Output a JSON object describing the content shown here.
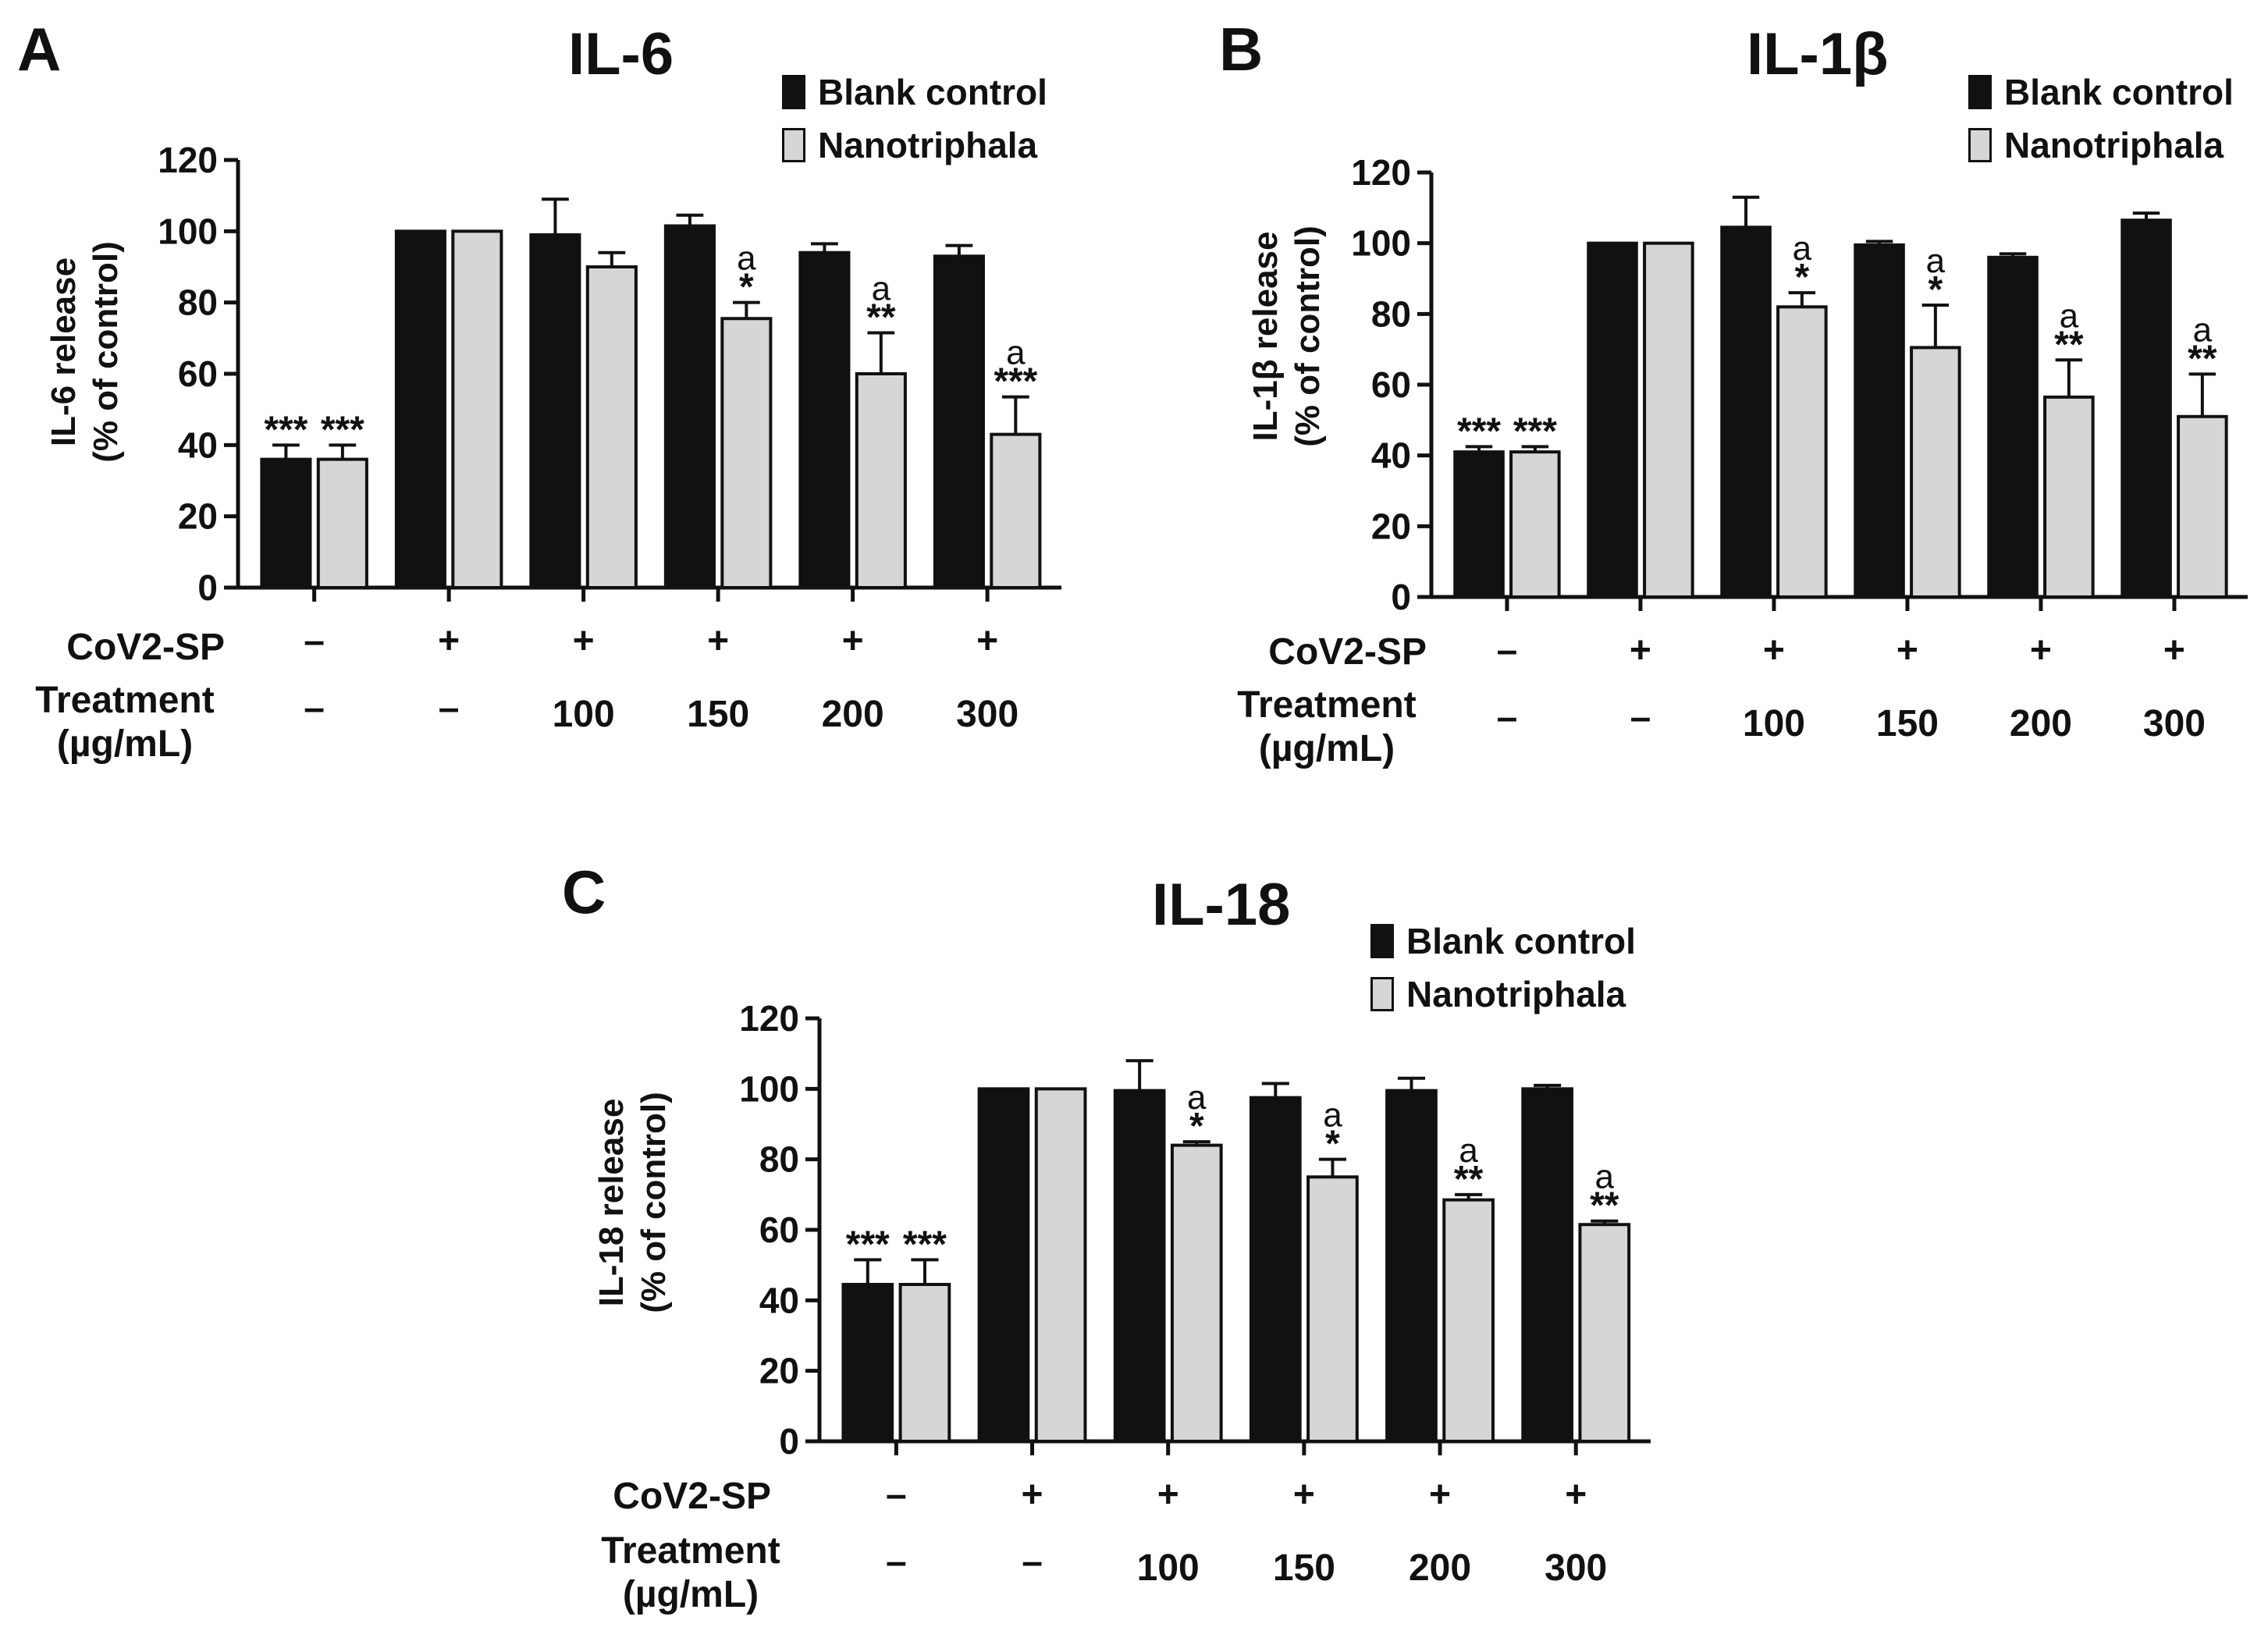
{
  "chart_data": [
    {
      "type": "bar",
      "panel": "A",
      "title": "IL-6",
      "ylabel_line1": "IL-6 release",
      "ylabel_line2": "(% of control)",
      "ylim": [
        0,
        120
      ],
      "yticks": [
        "0",
        "20",
        "40",
        "60",
        "80",
        "100",
        "120"
      ],
      "categories": [
        "CoV2-SP −, Treatment −",
        "CoV2-SP +, Treatment −",
        "CoV2-SP +, 100",
        "CoV2-SP +, 150",
        "CoV2-SP +, 200",
        "CoV2-SP +, 300"
      ],
      "cov2sp_label": "CoV2-SP",
      "treatment_label_line1": "Treatment",
      "treatment_label_line2": "(µg/mL)",
      "cov2sp_values": [
        "–",
        "+",
        "+",
        "+",
        "+",
        "+"
      ],
      "treatment_values": [
        "–",
        "–",
        "100",
        "150",
        "200",
        "300"
      ],
      "legend": [
        "Blank control",
        "Nanotriphala"
      ],
      "colors": {
        "blank": "#111111",
        "nano": "#d6d6d6",
        "edge": "#111111"
      },
      "series": [
        {
          "name": "Blank control",
          "values": [
            36,
            100,
            99,
            101.5,
            94,
            93
          ],
          "errors": [
            4,
            0,
            10,
            3,
            2.5,
            3
          ],
          "stars": [
            "***",
            "",
            "",
            "",
            "",
            ""
          ],
          "letters": [
            "",
            "",
            "",
            "",
            "",
            ""
          ]
        },
        {
          "name": "Nanotriphala",
          "values": [
            36,
            100,
            90,
            75.5,
            60,
            43
          ],
          "errors": [
            4,
            0,
            4,
            4.5,
            11.5,
            10.5
          ],
          "stars": [
            "***",
            "",
            "",
            "*",
            "**",
            "***"
          ],
          "letters": [
            "",
            "",
            "",
            "a",
            "a",
            "a"
          ]
        }
      ]
    },
    {
      "type": "bar",
      "panel": "B",
      "title": "IL-1β",
      "ylabel_line1": "IL-1β release",
      "ylabel_line2": "(% of control)",
      "ylim": [
        0,
        120
      ],
      "yticks": [
        "0",
        "20",
        "40",
        "60",
        "80",
        "100",
        "120"
      ],
      "categories": [
        "CoV2-SP −, Treatment −",
        "CoV2-SP +, Treatment −",
        "CoV2-SP +, 100",
        "CoV2-SP +, 150",
        "CoV2-SP +, 200",
        "CoV2-SP +, 300"
      ],
      "cov2sp_label": "CoV2-SP",
      "treatment_label_line1": "Treatment",
      "treatment_label_line2": "(µg/mL)",
      "cov2sp_values": [
        "–",
        "+",
        "+",
        "+",
        "+",
        "+"
      ],
      "treatment_values": [
        "–",
        "–",
        "100",
        "150",
        "200",
        "300"
      ],
      "legend": [
        "Blank control",
        "Nanotriphala"
      ],
      "colors": {
        "blank": "#111111",
        "nano": "#d6d6d6",
        "edge": "#111111"
      },
      "series": [
        {
          "name": "Blank control",
          "values": [
            41,
            100,
            104.5,
            99.5,
            96,
            106.5
          ],
          "errors": [
            1.5,
            0,
            8.5,
            1,
            1,
            2
          ],
          "stars": [
            "***",
            "",
            "",
            "",
            "",
            ""
          ],
          "letters": [
            "",
            "",
            "",
            "",
            "",
            ""
          ]
        },
        {
          "name": "Nanotriphala",
          "values": [
            41,
            100,
            82,
            70.5,
            56.5,
            51
          ],
          "errors": [
            1.5,
            0,
            4,
            12,
            10.5,
            12
          ],
          "stars": [
            "***",
            "",
            "*",
            "*",
            "**",
            "**"
          ],
          "letters": [
            "",
            "",
            "a",
            "a",
            "a",
            "a"
          ]
        }
      ]
    },
    {
      "type": "bar",
      "panel": "C",
      "title": "IL-18",
      "ylabel_line1": "IL-18 release",
      "ylabel_line2": "(% of control)",
      "ylim": [
        0,
        120
      ],
      "yticks": [
        "0",
        "20",
        "40",
        "60",
        "80",
        "100",
        "120"
      ],
      "categories": [
        "CoV2-SP −, Treatment −",
        "CoV2-SP +, Treatment −",
        "CoV2-SP +, 100",
        "CoV2-SP +, 150",
        "CoV2-SP +, 200",
        "CoV2-SP +, 300"
      ],
      "cov2sp_label": "CoV2-SP",
      "treatment_label_line1": "Treatment",
      "treatment_label_line2": "(µg/mL)",
      "cov2sp_values": [
        "–",
        "+",
        "+",
        "+",
        "+",
        "+"
      ],
      "treatment_values": [
        "–",
        "–",
        "100",
        "150",
        "200",
        "300"
      ],
      "legend": [
        "Blank control",
        "Nanotriphala"
      ],
      "colors": {
        "blank": "#111111",
        "nano": "#d6d6d6",
        "edge": "#111111"
      },
      "series": [
        {
          "name": "Blank control",
          "values": [
            44.5,
            100,
            99.5,
            97.5,
            99.5,
            100
          ],
          "errors": [
            7,
            0,
            8.5,
            4,
            3.5,
            1
          ],
          "stars": [
            "***",
            "",
            "",
            "",
            "",
            ""
          ],
          "letters": [
            "",
            "",
            "",
            "",
            "",
            ""
          ]
        },
        {
          "name": "Nanotriphala",
          "values": [
            44.5,
            100,
            84,
            75,
            68.5,
            61.5
          ],
          "errors": [
            7,
            0,
            1,
            5,
            1.5,
            1
          ],
          "stars": [
            "***",
            "",
            "*",
            "*",
            "**",
            "**"
          ],
          "letters": [
            "",
            "",
            "a",
            "a",
            "a",
            "a"
          ]
        }
      ]
    }
  ]
}
